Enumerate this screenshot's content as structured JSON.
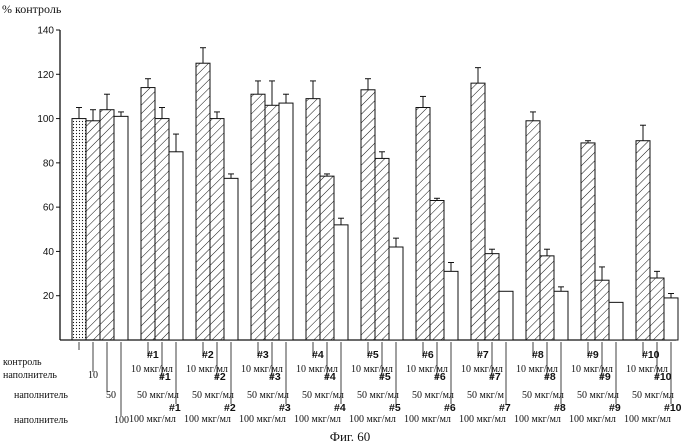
{
  "figure_caption": "Фиг. 60",
  "chart_data": {
    "type": "bar",
    "title": "",
    "ylabel": "% контроль",
    "xlabel": "",
    "ylim": [
      0,
      140
    ],
    "yticks": [
      20,
      40,
      60,
      80,
      100,
      120,
      140
    ],
    "grid": false,
    "groups": [
      {
        "bars": [
          {
            "value": 100,
            "err": 5,
            "fill": "dotted"
          },
          {
            "value": 99,
            "err": 5,
            "fill": "hatch"
          },
          {
            "value": 104,
            "err": 7,
            "fill": "hatch"
          },
          {
            "value": 101,
            "err": 2,
            "fill": "open"
          }
        ],
        "labels": [
          {
            "lines": [
              "контроль"
            ]
          },
          {
            "lines": [
              "наполнитель"
            ]
          },
          {
            "lines": [
              "наполнитель"
            ]
          },
          {
            "lines": [
              "наполнитель"
            ]
          }
        ],
        "doses": [
          "",
          "10",
          "50",
          "100"
        ]
      },
      {
        "name": "#1",
        "doses": [
          "10 мкг/мл",
          "50 мкг/мл",
          "100 мкг/мл"
        ],
        "bars": [
          {
            "value": 114,
            "err": 4
          },
          {
            "value": 100,
            "err": 5
          },
          {
            "value": 85,
            "err": 8
          }
        ]
      },
      {
        "name": "#2",
        "doses": [
          "10 мкг/мл",
          "50 мкг/мл",
          "100 мкг/мл"
        ],
        "bars": [
          {
            "value": 125,
            "err": 7
          },
          {
            "value": 100,
            "err": 3
          },
          {
            "value": 73,
            "err": 2
          }
        ]
      },
      {
        "name": "#3",
        "doses": [
          "10 мкг/мл",
          "50 мкг/мл",
          "100 мкг/мл"
        ],
        "bars": [
          {
            "value": 111,
            "err": 6
          },
          {
            "value": 106,
            "err": 11
          },
          {
            "value": 107,
            "err": 4
          }
        ]
      },
      {
        "name": "#4",
        "doses": [
          "10 мкг/мл",
          "50 мкг/мл",
          "100 мкг/мл"
        ],
        "bars": [
          {
            "value": 109,
            "err": 8
          },
          {
            "value": 74,
            "err": 1
          },
          {
            "value": 52,
            "err": 3
          }
        ]
      },
      {
        "name": "#5",
        "doses": [
          "10 мкг/мл",
          "50 мкг/мл",
          "100 мкг/мл"
        ],
        "bars": [
          {
            "value": 113,
            "err": 5
          },
          {
            "value": 82,
            "err": 3
          },
          {
            "value": 42,
            "err": 4
          }
        ]
      },
      {
        "name": "#6",
        "doses": [
          "10 мкг/мл",
          "50 мкг/мл",
          "100 мкг/мл"
        ],
        "bars": [
          {
            "value": 105,
            "err": 5
          },
          {
            "value": 63,
            "err": 1
          },
          {
            "value": 31,
            "err": 4
          }
        ]
      },
      {
        "name": "#7",
        "doses": [
          "10 мкг/мл",
          "50 мкг/м",
          "100 мкг/мл"
        ],
        "bars": [
          {
            "value": 116,
            "err": 7
          },
          {
            "value": 39,
            "err": 2
          },
          {
            "value": 22,
            "err": 0
          }
        ]
      },
      {
        "name": "#8",
        "doses": [
          "10 мкг/мл",
          "50 мкг/мл",
          "100 мкг/мл"
        ],
        "bars": [
          {
            "value": 99,
            "err": 4
          },
          {
            "value": 38,
            "err": 3
          },
          {
            "value": 22,
            "err": 2
          }
        ]
      },
      {
        "name": "#9",
        "doses": [
          "10 мкг/мл",
          "50 мкг/мл",
          "100 мкг/мл"
        ],
        "bars": [
          {
            "value": 89,
            "err": 1
          },
          {
            "value": 27,
            "err": 6
          },
          {
            "value": 17,
            "err": 0
          }
        ]
      },
      {
        "name": "#10",
        "doses": [
          "10 мкг/мл",
          "50 мкг/мл",
          "100 мкг/мл"
        ],
        "bars": [
          {
            "value": 90,
            "err": 7
          },
          {
            "value": 28,
            "err": 3
          },
          {
            "value": 19,
            "err": 2
          }
        ]
      }
    ]
  }
}
